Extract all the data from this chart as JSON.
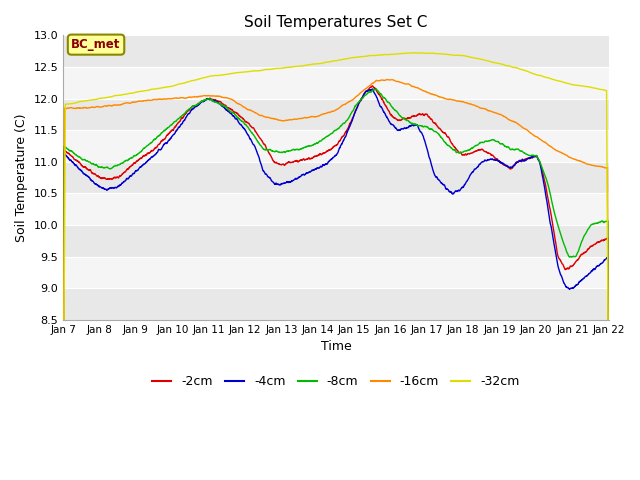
{
  "title": "Soil Temperatures Set C",
  "xlabel": "Time",
  "ylabel": "Soil Temperature (C)",
  "ylim": [
    8.5,
    13.0
  ],
  "xlim": [
    0,
    15
  ],
  "annotation": "BC_met",
  "series_labels": [
    "-2cm",
    "-4cm",
    "-8cm",
    "-16cm",
    "-32cm"
  ],
  "series_colors": [
    "#dd0000",
    "#0000cc",
    "#00bb00",
    "#ff8800",
    "#dddd00"
  ],
  "xtick_labels": [
    "Jan 7",
    "Jan 8",
    "Jan 9",
    "Jan 10",
    "Jan 11",
    "Jan 12",
    "Jan 13",
    "Jan 14",
    "Jan 15",
    "Jan 16",
    "Jan 17",
    "Jan 18",
    "Jan 19",
    "Jan 20",
    "Jan 21",
    "Jan 22"
  ],
  "ytick_values": [
    8.5,
    9.0,
    9.5,
    10.0,
    10.5,
    11.0,
    11.5,
    12.0,
    12.5,
    13.0
  ],
  "band_colors": [
    "#e8e8e8",
    "#f5f5f5"
  ],
  "spine_color": "#cccccc"
}
